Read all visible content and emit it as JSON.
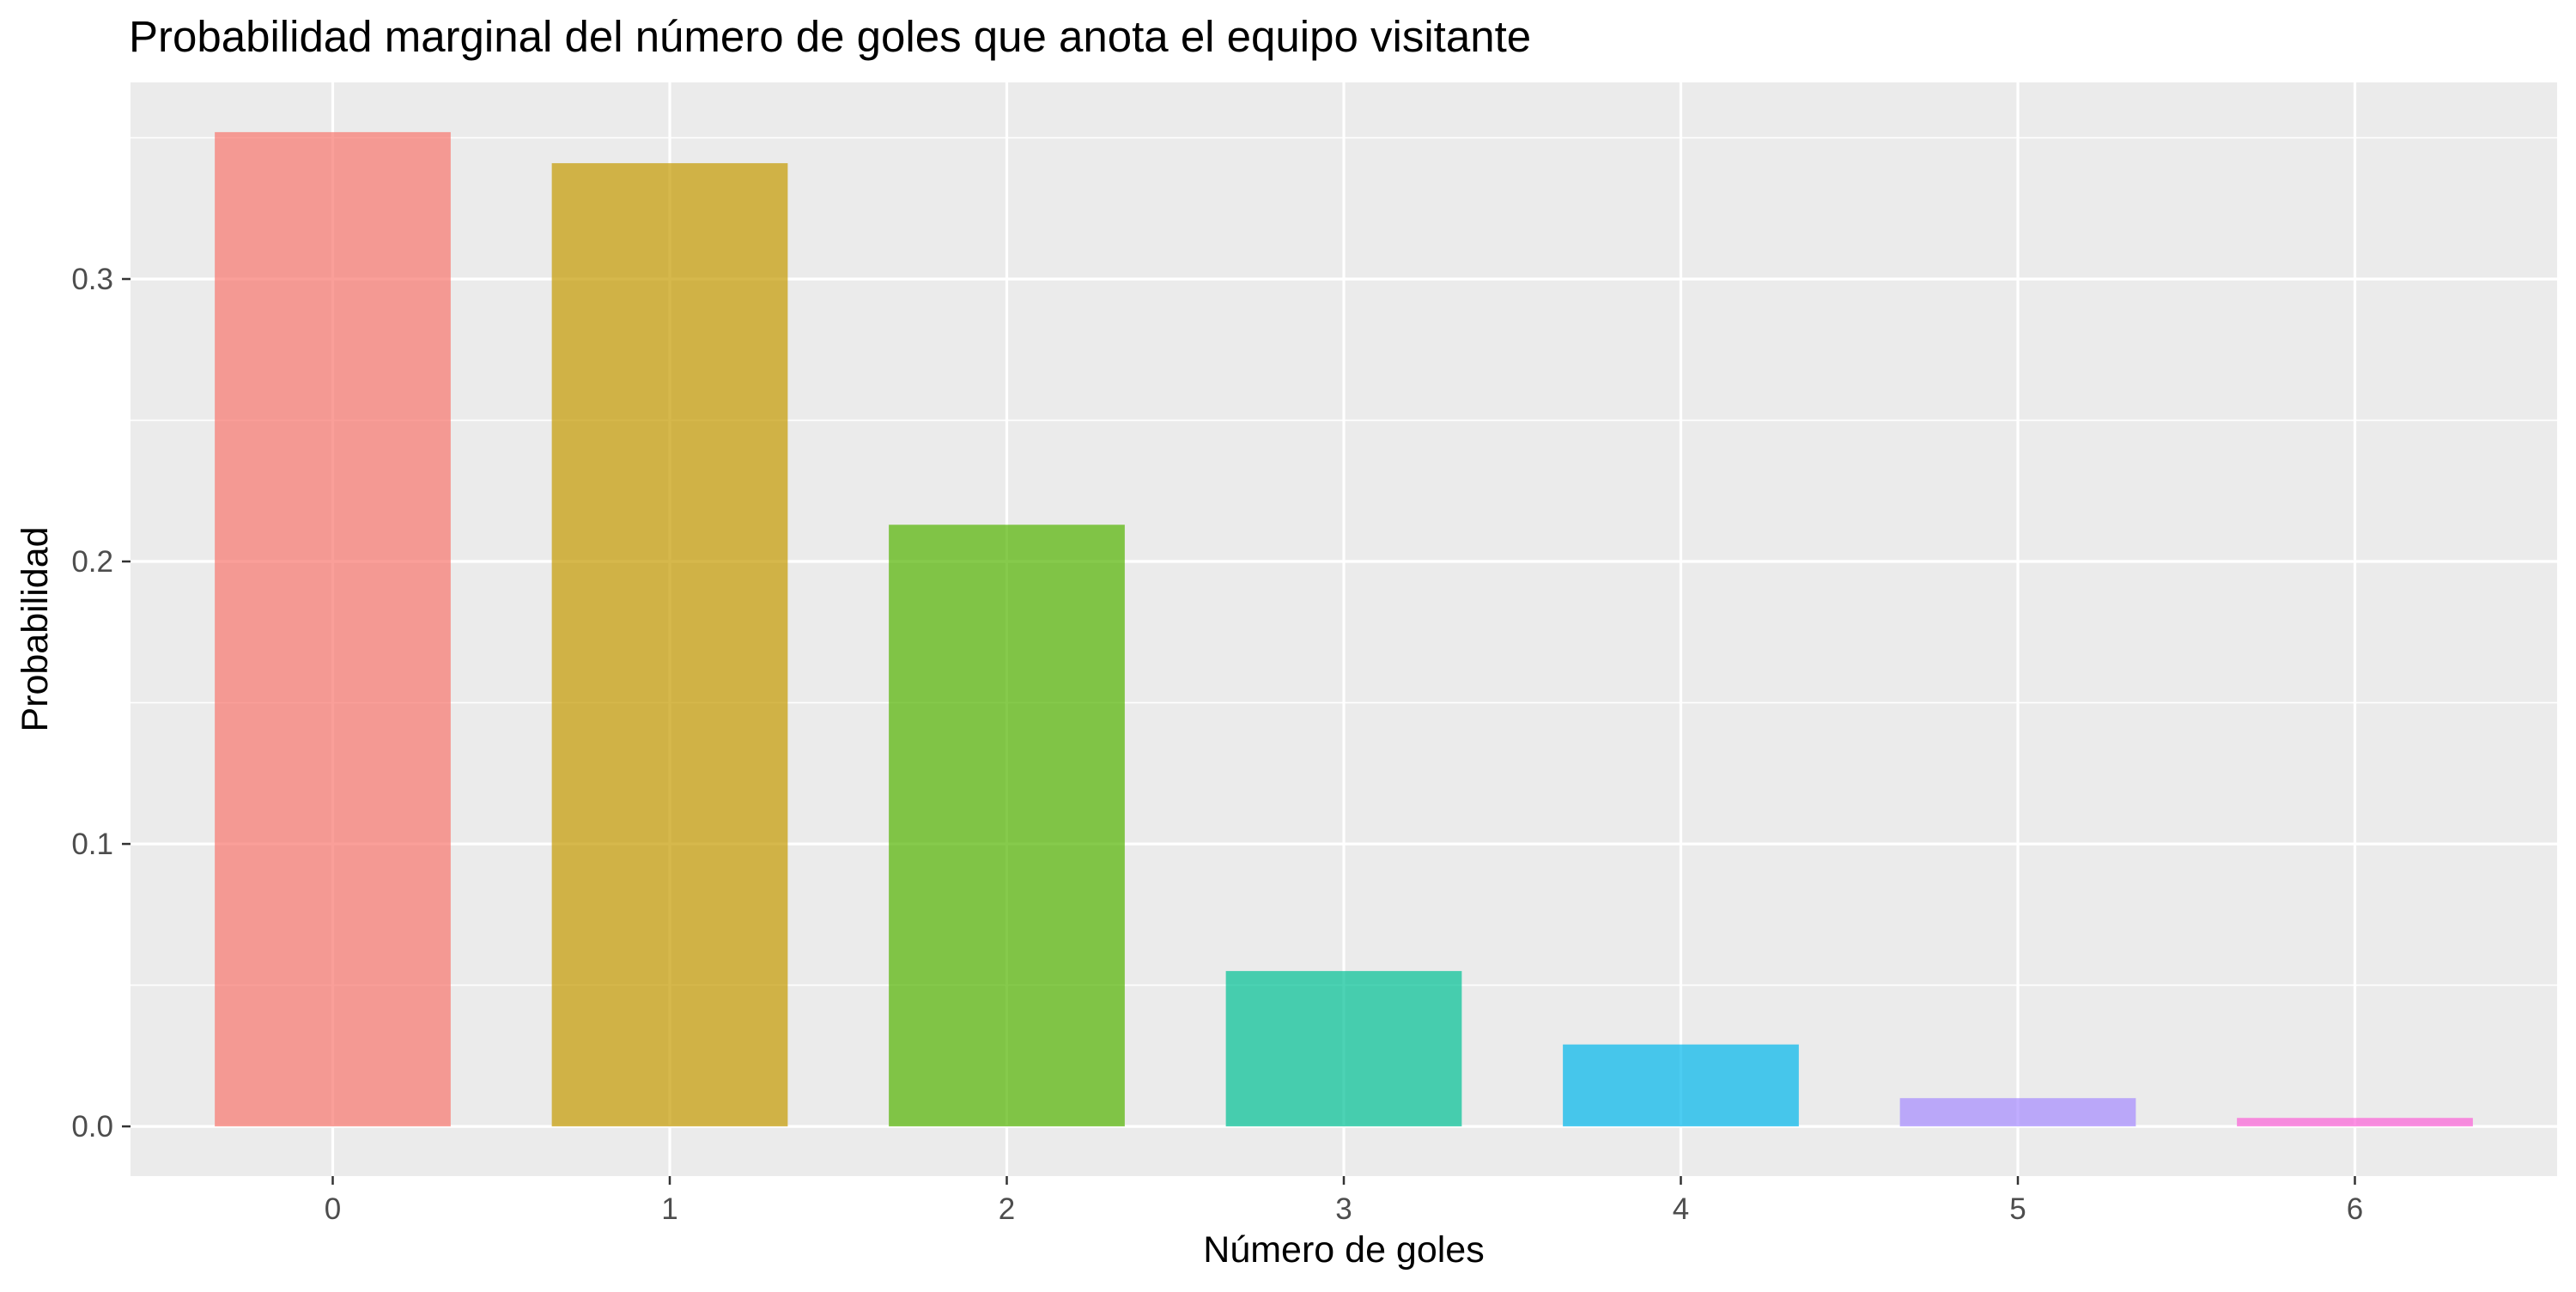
{
  "chart_data": {
    "type": "bar",
    "title": "Probabilidad marginal del número de goles que anota el equipo visitante",
    "xlabel": "Número de goles",
    "ylabel": "Probabilidad",
    "categories": [
      "0",
      "1",
      "2",
      "3",
      "4",
      "5",
      "6"
    ],
    "values": [
      0.352,
      0.341,
      0.213,
      0.055,
      0.029,
      0.01,
      0.003
    ],
    "colors": [
      "#F8766D",
      "#C49A00",
      "#53B400",
      "#00C094",
      "#00B6EB",
      "#A58AFF",
      "#FB61D7"
    ],
    "bar_opacity": 0.7,
    "ylim": [
      -0.0176,
      0.3696
    ],
    "yticks": [
      0.0,
      0.1,
      0.2,
      0.3
    ],
    "ytick_labels": [
      "0.0",
      "0.1",
      "0.2",
      "0.3"
    ],
    "grid": true,
    "legend": "none",
    "panel_background": "#EBEBEB",
    "grid_color": "#FFFFFF",
    "tick_color": "#333333",
    "tick_label_color": "#4D4D4D"
  }
}
